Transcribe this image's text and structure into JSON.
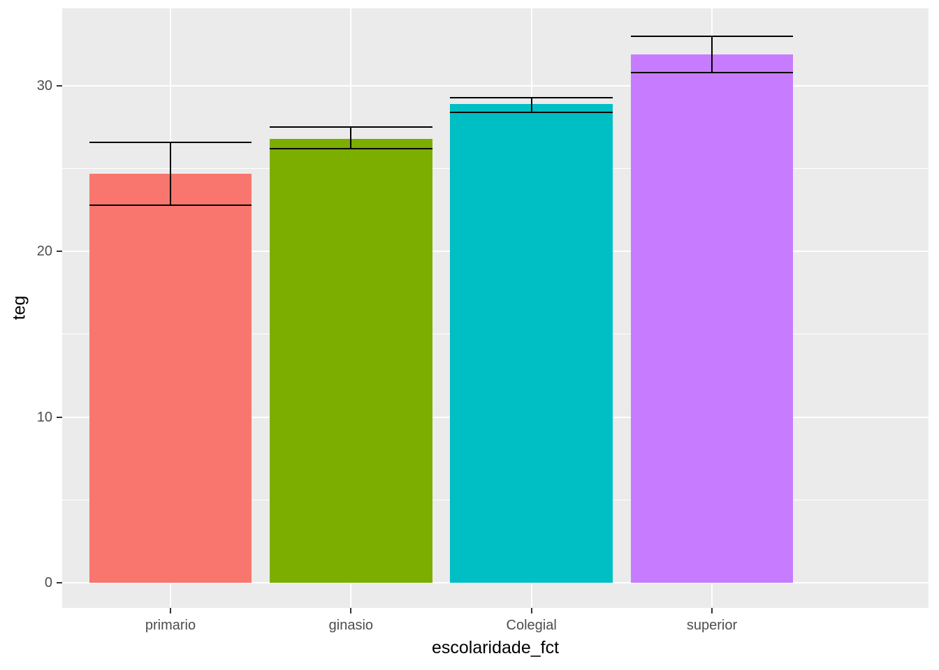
{
  "chart_data": {
    "type": "bar",
    "title": "",
    "xlabel": "escolaridade_fct",
    "ylabel": "teg",
    "categories": [
      "primario",
      "ginasio",
      "Colegial",
      "superior"
    ],
    "values": [
      24.7,
      26.8,
      28.9,
      31.9
    ],
    "error_bars": {
      "low": [
        22.8,
        26.2,
        28.4,
        30.8
      ],
      "high": [
        26.6,
        27.5,
        29.3,
        33.0
      ]
    },
    "bar_colors": [
      "#F8766D",
      "#7CAE00",
      "#00BFC4",
      "#C77CFF"
    ],
    "y_ticks": [
      0,
      10,
      20,
      30
    ],
    "y_minor_ticks": [
      5,
      15,
      25
    ],
    "ylim": [
      -1.52,
      34.68
    ],
    "bar_width_fraction": 0.9,
    "x_expand": 0.4,
    "grid": true,
    "legend": "none",
    "styles": {
      "panel_bg": "#EBEBEB",
      "grid_color": "#FFFFFF",
      "errorbar_color": "#000000",
      "tick_label_color": "#4D4D4D",
      "tick_mark_color": "#333333",
      "axis_title_color": "#000000",
      "figure_bg": "#FFFFFF"
    }
  }
}
